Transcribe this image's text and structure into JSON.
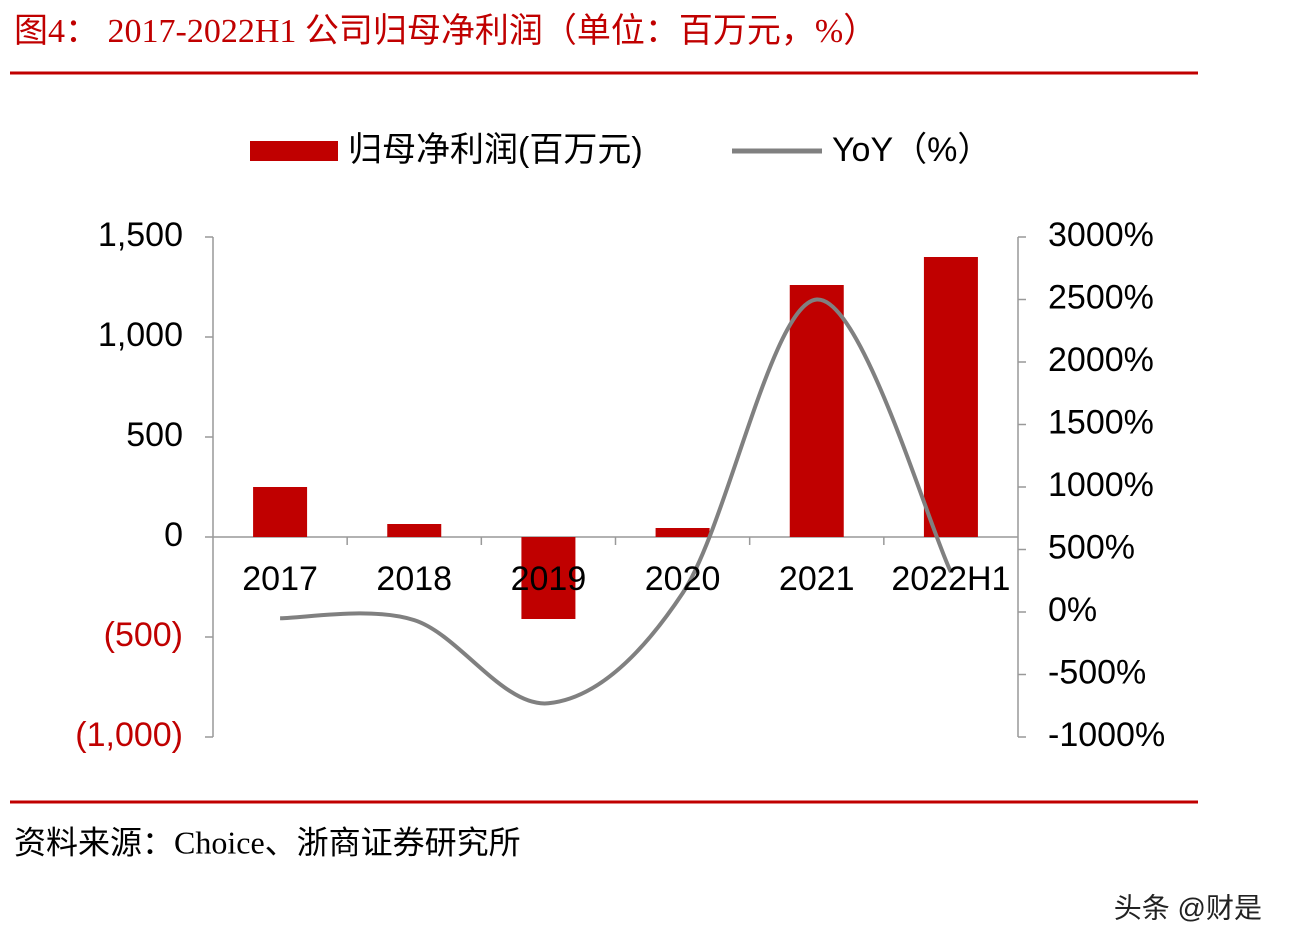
{
  "chart_data": {
    "type": "bar_line",
    "title": "图4： 2017-2022H1 公司归母净利润（单位：百万元，%）",
    "source": "资料来源：Choice、浙商证券研究所",
    "watermark": "头条 @财是",
    "categories": [
      "2017",
      "2018",
      "2019",
      "2020",
      "2021",
      "2022H1"
    ],
    "series": [
      {
        "name": "归母净利润(百万元)",
        "color": "#c00000",
        "type": "bar",
        "values": [
          250,
          65,
          -410,
          45,
          1260,
          1400
        ]
      },
      {
        "name": "YoY（%）",
        "color": "#808080",
        "type": "line",
        "axis": "y2",
        "values": [
          -50,
          -65,
          -730,
          150,
          2500,
          320
        ]
      }
    ],
    "ylim": [
      -1000,
      1500
    ],
    "yticks": [
      {
        "value": -1000,
        "label": "(1,000)"
      },
      {
        "value": -500,
        "label": "(500)"
      },
      0,
      500,
      {
        "value": 1000,
        "label": "1,000"
      },
      {
        "value": 1500,
        "label": "1,500"
      }
    ],
    "negative_label_color": "#c00000",
    "y2lim": [
      -1000,
      3000
    ],
    "y2ticks": [
      {
        "value": -1000,
        "label": "-1000%"
      },
      {
        "value": -500,
        "label": "-500%"
      },
      {
        "value": 0,
        "label": "0%"
      },
      {
        "value": 500,
        "label": "500%"
      },
      {
        "value": 1000,
        "label": "1000%"
      },
      {
        "value": 1500,
        "label": "1500%"
      },
      {
        "value": 2000,
        "label": "2000%"
      },
      {
        "value": 2500,
        "label": "2500%"
      },
      {
        "value": 3000,
        "label": "3000%"
      }
    ],
    "grid": false
  }
}
